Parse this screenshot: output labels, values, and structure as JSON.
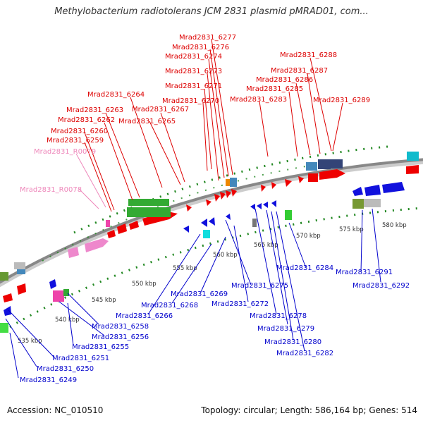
{
  "title": "Methylobacterium radiotolerans JCM 2831 plasmid pMRAD01, com...",
  "footer": {
    "accession": "Accession: NC_010510",
    "stats": "Topology: circular; Length: 586,164 bp; Genes: 514"
  },
  "colors": {
    "forward_label": "#dd0000",
    "reverse_label": "#0000cc",
    "rna_label": "#ee88bb",
    "backbone": "#888888",
    "tick": "#228822"
  },
  "scale_labels": [
    "535 kbp",
    "540 kbp",
    "545 kbp",
    "550 kbp",
    "555 kbp",
    "560 kbp",
    "565 kbp",
    "570 kbp",
    "575 kbp",
    "580 kbp"
  ],
  "forward_labels": [
    "Mrad2831_6277",
    "Mrad2831_6276",
    "Mrad2831_6274",
    "Mrad2831_6273",
    "Mrad2831_6271",
    "Mrad2831_6270",
    "Mrad2831_6264",
    "Mrad2831_6263",
    "Mrad2831_6267",
    "Mrad2831_6262",
    "Mrad2831_6265",
    "Mrad2831_6260",
    "Mrad2831_6259",
    "Mrad2831_6288",
    "Mrad2831_6287",
    "Mrad2831_6286",
    "Mrad2831_6285",
    "Mrad2831_6283",
    "Mrad2831_6289"
  ],
  "rna_labels": [
    "Mrad2831_R0079",
    "Mrad2831_R0078"
  ],
  "reverse_labels": [
    "Mrad2831_6284",
    "Mrad2831_6291",
    "Mrad2831_6292",
    "Mrad2831_6275",
    "Mrad2831_6269",
    "Mrad2831_6272",
    "Mrad2831_6268",
    "Mrad2831_6278",
    "Mrad2831_6266",
    "Mrad2831_6279",
    "Mrad2831_6258",
    "Mrad2831_6256",
    "Mrad2831_6280",
    "Mrad2831_6282",
    "Mrad2831_6255",
    "Mrad2831_6251",
    "Mrad2831_6250",
    "Mrad2831_6249"
  ]
}
